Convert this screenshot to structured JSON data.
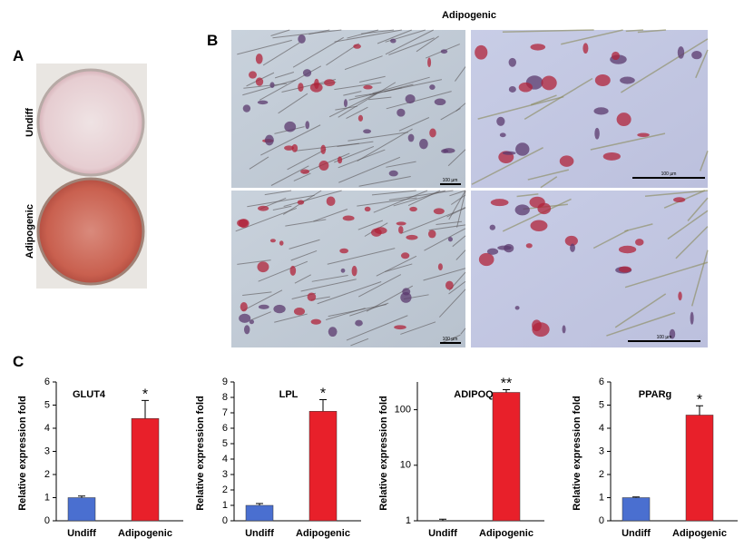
{
  "panels": {
    "a": {
      "label": "A",
      "rows": [
        "Undiff",
        "Adipogenic"
      ]
    },
    "b": {
      "label": "B",
      "title": "Adipogenic",
      "scale_bars": [
        "100 µm",
        "100 µm",
        "100 µm",
        "100 µm"
      ]
    },
    "c": {
      "label": "C"
    }
  },
  "chart_data": [
    {
      "type": "bar",
      "title": "GLUT4",
      "y_label": "Relative expression fold",
      "categories": [
        "Undiff",
        "Adipogenic"
      ],
      "values": [
        1.0,
        4.42
      ],
      "errors": [
        0.07,
        0.78
      ],
      "colors": [
        "#4a6fd0",
        "#e8202a"
      ],
      "annotation": "*",
      "ylim": [
        0,
        6
      ],
      "yticks": [
        0,
        1,
        2,
        3,
        4,
        5,
        6
      ]
    },
    {
      "type": "bar",
      "title": "LPL",
      "y_label": "Relative expression fold",
      "categories": [
        "Undiff",
        "Adipogenic"
      ],
      "values": [
        1.0,
        7.1
      ],
      "errors": [
        0.12,
        0.75
      ],
      "colors": [
        "#4a6fd0",
        "#e8202a"
      ],
      "annotation": "*",
      "ylim": [
        0,
        9
      ],
      "yticks": [
        0,
        1,
        2,
        3,
        4,
        5,
        6,
        7,
        8,
        9
      ]
    },
    {
      "type": "bar",
      "title": "ADIPOQ",
      "y_label": "Relative expression fold",
      "categories": [
        "Undiff",
        "Adipogenic"
      ],
      "values": [
        1.0,
        205
      ],
      "errors": [
        0.07,
        25
      ],
      "colors": [
        "#4a6fd0",
        "#e8202a"
      ],
      "annotation": "**",
      "log_scale": true,
      "ylim": [
        1,
        316
      ],
      "yticks": [
        1,
        10,
        100
      ]
    },
    {
      "type": "bar",
      "title": "PPARg",
      "y_label": "Relative expression fold",
      "categories": [
        "Undiff",
        "Adipogenic"
      ],
      "values": [
        1.0,
        4.57
      ],
      "errors": [
        0.03,
        0.4
      ],
      "colors": [
        "#4a6fd0",
        "#e8202a"
      ],
      "annotation": "*",
      "ylim": [
        0,
        6
      ],
      "yticks": [
        0,
        1,
        2,
        3,
        4,
        5,
        6
      ]
    }
  ]
}
